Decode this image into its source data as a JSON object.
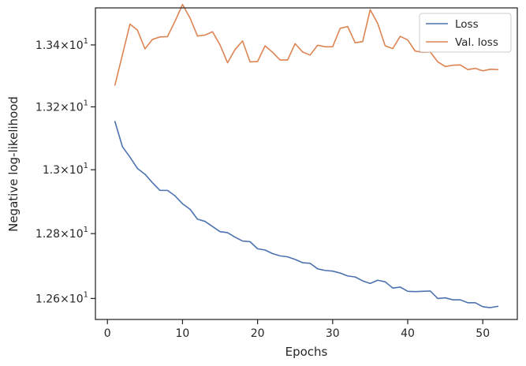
{
  "chart_data": {
    "type": "line",
    "xlabel": "Epochs",
    "ylabel": "Negative log-likelihood",
    "xlim": [
      -1.6,
      54.6
    ],
    "ylim": [
      12.536,
      13.521
    ],
    "y_scale": "log",
    "grid": false,
    "legend_position": "top-right",
    "x_ticks": [
      0,
      10,
      20,
      30,
      40,
      50
    ],
    "x_tick_labels": [
      "0",
      "10",
      "20",
      "30",
      "40",
      "50"
    ],
    "y_ticks": [
      12.6,
      12.8,
      13.0,
      13.2,
      13.4
    ],
    "y_tick_labels": [
      {
        "mantissa": "1.26",
        "exponent": "1"
      },
      {
        "mantissa": "1.28",
        "exponent": "1"
      },
      {
        "mantissa": "1.3",
        "exponent": "1"
      },
      {
        "mantissa": "1.32",
        "exponent": "1"
      },
      {
        "mantissa": "1.34",
        "exponent": "1"
      }
    ],
    "series": [
      {
        "name": "Loss",
        "color": "#4c72b0",
        "x": [
          1,
          2,
          3,
          4,
          5,
          6,
          7,
          8,
          9,
          10,
          11,
          12,
          13,
          14,
          15,
          16,
          17,
          18,
          19,
          20,
          21,
          22,
          23,
          24,
          25,
          26,
          27,
          28,
          29,
          30,
          31,
          32,
          33,
          34,
          35,
          36,
          37,
          38,
          39,
          40,
          41,
          42,
          43,
          44,
          45,
          46,
          47,
          48,
          49,
          50,
          51,
          52
        ],
        "values": [
          13.153,
          13.073,
          13.04,
          13.004,
          12.986,
          12.959,
          12.935,
          12.935,
          12.918,
          12.893,
          12.876,
          12.845,
          12.838,
          12.822,
          12.806,
          12.803,
          12.789,
          12.777,
          12.775,
          12.753,
          12.749,
          12.738,
          12.731,
          12.728,
          12.72,
          12.71,
          12.708,
          12.691,
          12.686,
          12.684,
          12.678,
          12.669,
          12.666,
          12.654,
          12.646,
          12.656,
          12.651,
          12.632,
          12.635,
          12.622,
          12.621,
          12.622,
          12.623,
          12.6,
          12.602,
          12.596,
          12.596,
          12.587,
          12.587,
          12.575,
          12.572,
          12.576
        ]
      },
      {
        "name": "Val. loss",
        "color": "#dd8452",
        "x": [
          1,
          2,
          3,
          4,
          5,
          6,
          7,
          8,
          9,
          10,
          11,
          12,
          13,
          14,
          15,
          16,
          17,
          18,
          19,
          20,
          21,
          22,
          23,
          24,
          25,
          26,
          27,
          28,
          29,
          30,
          31,
          32,
          33,
          34,
          35,
          36,
          37,
          38,
          39,
          40,
          41,
          42,
          43,
          44,
          45,
          46,
          47,
          48,
          49,
          50,
          51,
          52
        ],
        "values": [
          13.27,
          13.368,
          13.468,
          13.448,
          13.387,
          13.418,
          13.426,
          13.427,
          13.477,
          13.532,
          13.488,
          13.429,
          13.432,
          13.443,
          13.4,
          13.342,
          13.385,
          13.413,
          13.345,
          13.346,
          13.397,
          13.376,
          13.351,
          13.351,
          13.404,
          13.377,
          13.367,
          13.399,
          13.394,
          13.394,
          13.454,
          13.46,
          13.407,
          13.411,
          13.515,
          13.47,
          13.397,
          13.388,
          13.428,
          13.416,
          13.38,
          13.376,
          13.377,
          13.345,
          13.33,
          13.334,
          13.335,
          13.32,
          13.324,
          13.316,
          13.321,
          13.32
        ]
      }
    ]
  }
}
